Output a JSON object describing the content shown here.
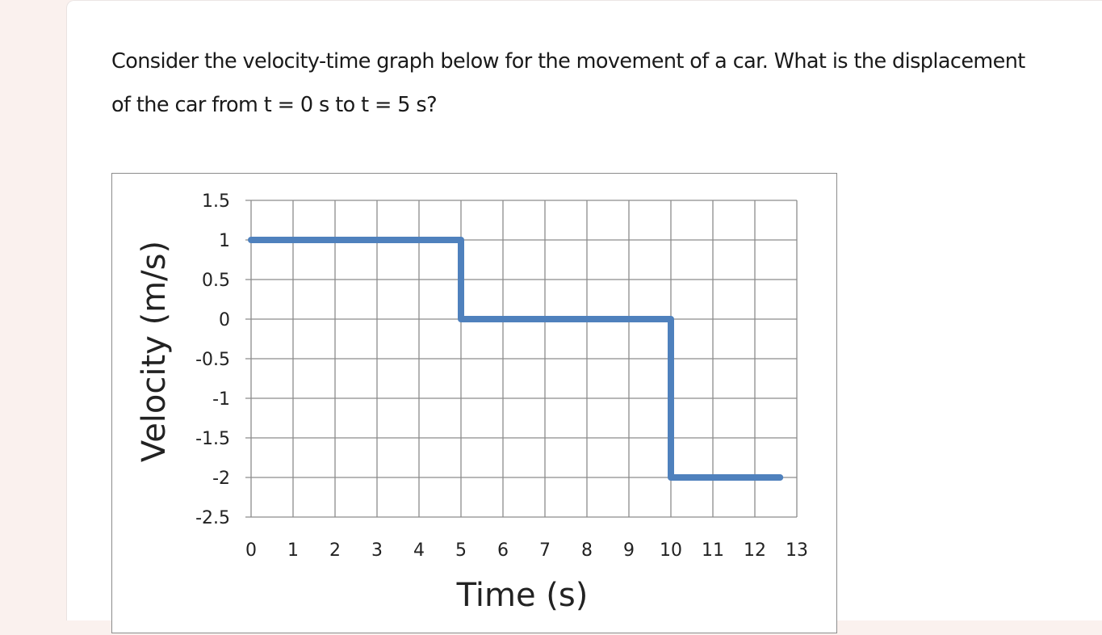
{
  "question": {
    "line1": "Consider the velocity-time graph below for the movement of a car. What is the displacement",
    "line2": "of the car from t = 0 s to t = 5 s?"
  },
  "chart_data": {
    "type": "line",
    "xlabel": "Time (s)",
    "ylabel": "Velocity (m/s)",
    "xlim": [
      0,
      13
    ],
    "ylim": [
      -2.5,
      1.5
    ],
    "x_ticks": [
      "0",
      "1",
      "2",
      "3",
      "4",
      "5",
      "6",
      "7",
      "8",
      "9",
      "10",
      "11",
      "12",
      "13"
    ],
    "y_ticks": [
      "1.5",
      "1",
      "0.5",
      "0",
      "-0.5",
      "-1",
      "-1.5",
      "-2",
      "-2.5"
    ],
    "grid": true,
    "line_color": "#4f81bd",
    "series": [
      {
        "x": [
          0,
          5,
          5,
          10,
          10,
          12.6
        ],
        "y": [
          1,
          1,
          0,
          0,
          -2,
          -2
        ]
      }
    ]
  }
}
